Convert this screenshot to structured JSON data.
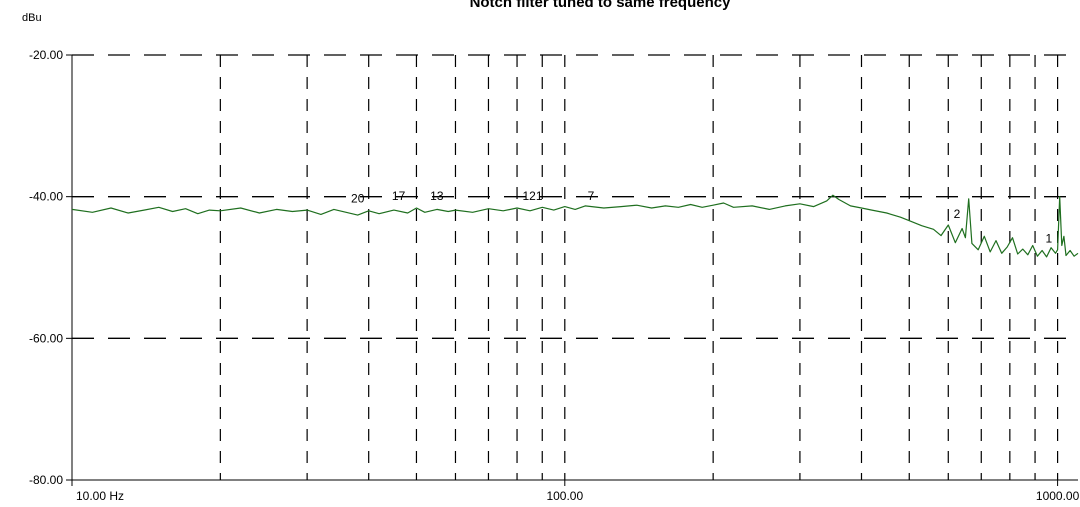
{
  "chart_data": {
    "type": "line",
    "title": "Notch filter tuned to same frequency",
    "y_unit": "dBu",
    "x_scale": "log",
    "xlim": [
      10,
      1100
    ],
    "ylim": [
      -80,
      -20
    ],
    "y_ticks": [
      {
        "value": -20,
        "label": "-20.00"
      },
      {
        "value": -40,
        "label": "-40.00"
      },
      {
        "value": -60,
        "label": "-60.00"
      },
      {
        "value": -80,
        "label": "-80.00"
      }
    ],
    "x_ticks": [
      {
        "value": 10,
        "label": "10.00 Hz"
      },
      {
        "value": 100,
        "label": "100.00"
      },
      {
        "value": 1000,
        "label": "1000.00"
      }
    ],
    "grid": true,
    "line_color": "#1f6f1f",
    "series": [
      {
        "values": [
          [
            10,
            -41.8
          ],
          [
            11,
            -42.2
          ],
          [
            12,
            -41.6
          ],
          [
            13,
            -42.3
          ],
          [
            14,
            -41.9
          ],
          [
            15,
            -41.5
          ],
          [
            16,
            -42.1
          ],
          [
            17,
            -41.7
          ],
          [
            18,
            -42.4
          ],
          [
            19,
            -41.9
          ],
          [
            20,
            -42.0
          ],
          [
            22,
            -41.6
          ],
          [
            24,
            -42.3
          ],
          [
            26,
            -41.8
          ],
          [
            28,
            -42.1
          ],
          [
            30,
            -41.9
          ],
          [
            32,
            -42.5
          ],
          [
            34,
            -41.8
          ],
          [
            36,
            -42.2
          ],
          [
            38,
            -42.6
          ],
          [
            40,
            -42.0
          ],
          [
            42,
            -42.4
          ],
          [
            45,
            -41.9
          ],
          [
            48,
            -42.3
          ],
          [
            50,
            -41.6
          ],
          [
            52,
            -42.2
          ],
          [
            55,
            -41.8
          ],
          [
            58,
            -42.1
          ],
          [
            60,
            -41.9
          ],
          [
            65,
            -42.2
          ],
          [
            70,
            -41.7
          ],
          [
            75,
            -42.0
          ],
          [
            80,
            -41.6
          ],
          [
            85,
            -42.0
          ],
          [
            90,
            -41.5
          ],
          [
            95,
            -41.9
          ],
          [
            100,
            -41.4
          ],
          [
            105,
            -41.8
          ],
          [
            110,
            -41.3
          ],
          [
            120,
            -41.6
          ],
          [
            130,
            -41.4
          ],
          [
            140,
            -41.2
          ],
          [
            150,
            -41.6
          ],
          [
            160,
            -41.3
          ],
          [
            170,
            -41.5
          ],
          [
            180,
            -41.1
          ],
          [
            190,
            -41.5
          ],
          [
            200,
            -41.2
          ],
          [
            210,
            -40.9
          ],
          [
            220,
            -41.5
          ],
          [
            240,
            -41.3
          ],
          [
            260,
            -41.8
          ],
          [
            280,
            -41.3
          ],
          [
            300,
            -41.0
          ],
          [
            320,
            -41.4
          ],
          [
            340,
            -40.6
          ],
          [
            350,
            -39.8
          ],
          [
            360,
            -40.4
          ],
          [
            380,
            -41.3
          ],
          [
            400,
            -41.6
          ],
          [
            420,
            -41.9
          ],
          [
            450,
            -42.3
          ],
          [
            480,
            -42.9
          ],
          [
            500,
            -43.4
          ],
          [
            530,
            -44.1
          ],
          [
            560,
            -44.6
          ],
          [
            580,
            -45.5
          ],
          [
            600,
            -44.0
          ],
          [
            620,
            -46.5
          ],
          [
            640,
            -44.5
          ],
          [
            650,
            -45.8
          ],
          [
            660,
            -40.3
          ],
          [
            670,
            -46.6
          ],
          [
            690,
            -47.5
          ],
          [
            710,
            -45.6
          ],
          [
            730,
            -47.8
          ],
          [
            750,
            -46.2
          ],
          [
            770,
            -48.0
          ],
          [
            790,
            -47.1
          ],
          [
            810,
            -45.8
          ],
          [
            830,
            -48.1
          ],
          [
            850,
            -47.4
          ],
          [
            870,
            -48.2
          ],
          [
            890,
            -46.9
          ],
          [
            910,
            -48.4
          ],
          [
            930,
            -47.6
          ],
          [
            950,
            -48.5
          ],
          [
            970,
            -47.2
          ],
          [
            990,
            -48.0
          ],
          [
            1000,
            -47.5
          ],
          [
            1010,
            -40.0
          ],
          [
            1020,
            -46.9
          ],
          [
            1030,
            -45.6
          ],
          [
            1040,
            -48.3
          ],
          [
            1060,
            -47.6
          ],
          [
            1080,
            -48.4
          ],
          [
            1100,
            -48.0
          ]
        ]
      }
    ],
    "markers": [
      {
        "label": "20",
        "x": 38,
        "y": -40.8
      },
      {
        "label": "17",
        "x": 46,
        "y": -40.5
      },
      {
        "label": "13",
        "x": 55,
        "y": -40.5
      },
      {
        "label": "121",
        "x": 86,
        "y": -40.5
      },
      {
        "label": "7",
        "x": 113,
        "y": -40.5
      },
      {
        "label": "2",
        "x": 625,
        "y": -43.0
      },
      {
        "label": "1",
        "x": 960,
        "y": -46.5
      }
    ]
  }
}
